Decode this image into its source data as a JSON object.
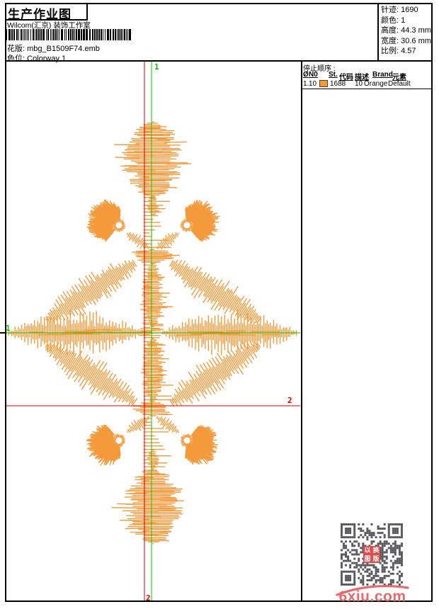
{
  "header": {
    "title": "生产作业图",
    "studio": "Wilcom(汇京) 装饰工作室",
    "pattern": {
      "label": "花版:",
      "value": "mbg_B1509F74.emb"
    },
    "colorway": {
      "label": "色位:",
      "value": "Colorway 1"
    },
    "stats": [
      {
        "label": "针迹:",
        "value": "1690"
      },
      {
        "label": "颜色:",
        "value": "1"
      },
      {
        "label": "高度:",
        "value": "44.3 mm"
      },
      {
        "label": "宽度:",
        "value": "30.6 mm"
      },
      {
        "label": "比例:",
        "value": "4.57"
      }
    ]
  },
  "stop_sequence": {
    "title": "停止顺序 :",
    "columns": {
      "hash": "Ø",
      "n0": "N0",
      "st": "St.",
      "code": "代码",
      "desc": "描述",
      "brand": "Brand",
      "element": "元素"
    },
    "row": {
      "index": "1.",
      "n0": "10",
      "st": "1688",
      "code": "10",
      "desc": "Orange",
      "brand": "Default",
      "element": ""
    },
    "swatch_color": "#F6992F"
  },
  "design": {
    "labels": {
      "start_top": "1",
      "start_left": "1",
      "end_right": "2",
      "end_bottom": "2"
    },
    "colors": {
      "stitch": "#F59A3C",
      "start": "#00C800",
      "end": "#D40000"
    }
  },
  "qr": {
    "logo_chars": [
      "以",
      "换",
      "图",
      "版"
    ]
  },
  "watermark": {
    "text": "6xiu.com",
    "color": "#E9686C"
  }
}
